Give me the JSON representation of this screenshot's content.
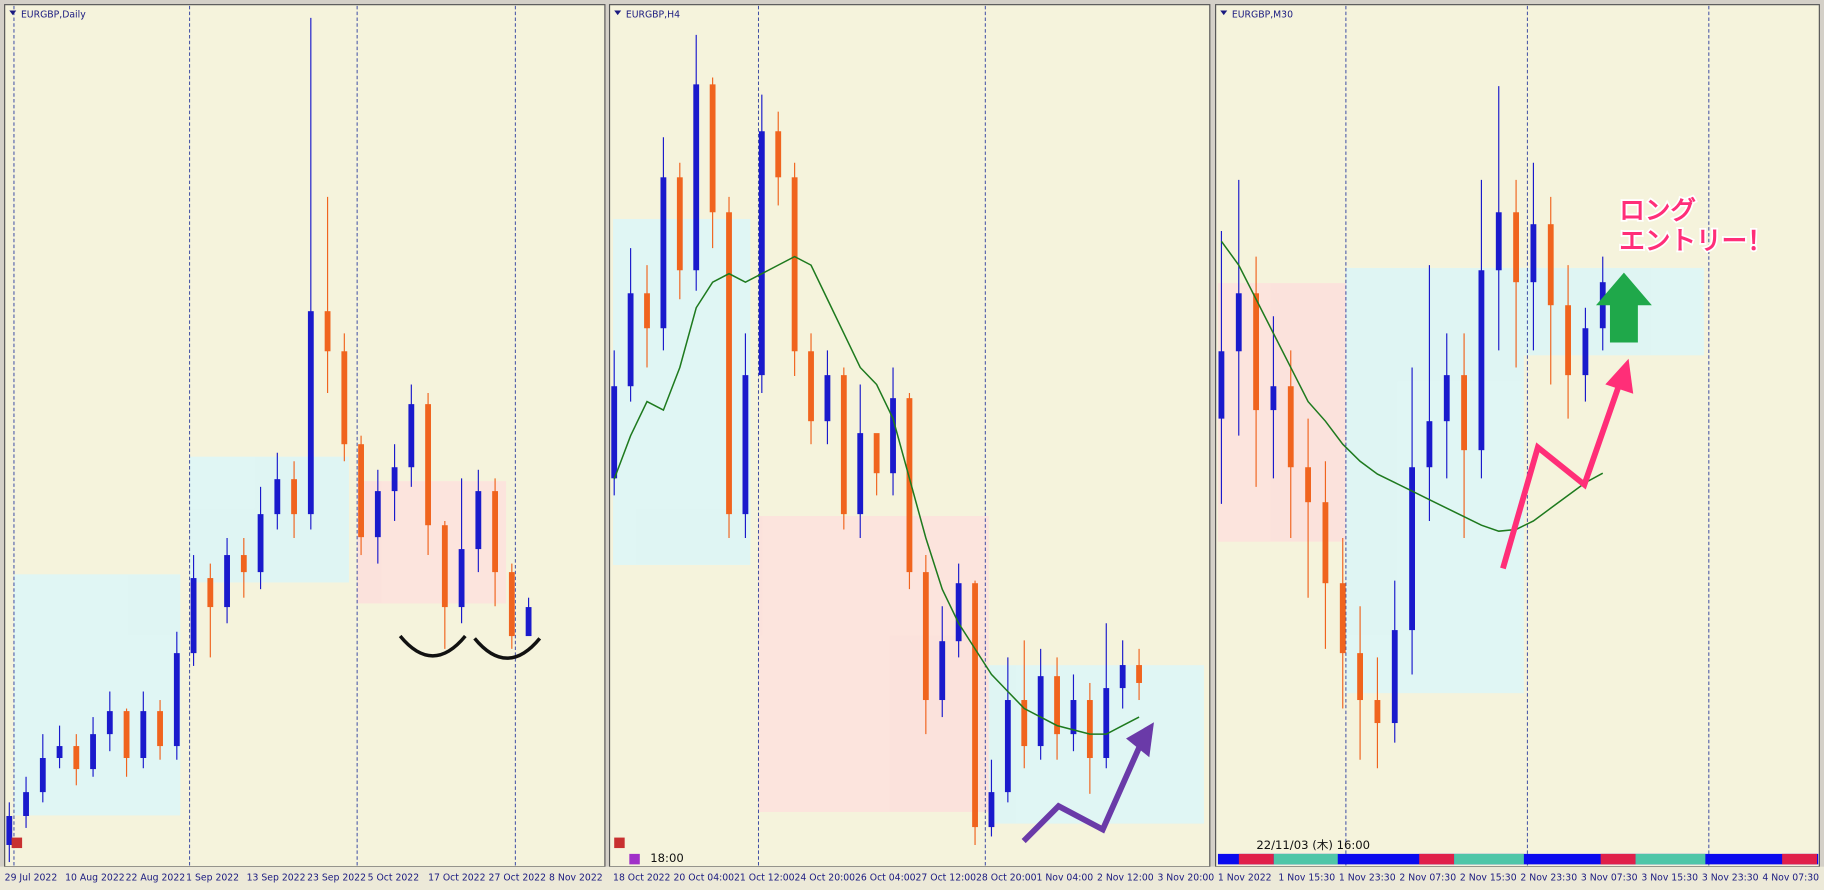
{
  "chart_data": [
    {
      "type": "candlestick",
      "title": "EURGBP,Daily",
      "categories": [
        "29 Jul 2022",
        "10 Aug 2022",
        "22 Aug 2022",
        "1 Sep 2022",
        "13 Sep 2022",
        "23 Sep 2022",
        "5 Oct 2022",
        "17 Oct 2022",
        "27 Oct 2022",
        "8 Nov 2022"
      ],
      "open": [
        2,
        5.4,
        8.2,
        12.2,
        13.6,
        10.9,
        15,
        17.7,
        12.2,
        17.7,
        13.6,
        24.5,
        33.3,
        29.9,
        36,
        34,
        40.8,
        44.9,
        40.8,
        64.6,
        59.9,
        49,
        38.1,
        43.5,
        46.3,
        53.7,
        39.5,
        29.9,
        36.7,
        43.5,
        34,
        26.5
      ],
      "high": [
        7,
        10,
        15,
        16,
        15,
        17,
        20,
        18,
        20,
        19,
        27,
        36,
        35,
        38,
        38,
        44,
        48,
        47,
        99,
        78,
        62,
        50,
        46,
        49,
        56,
        55,
        40,
        45,
        46,
        45,
        35,
        31
      ],
      "low": [
        0,
        4,
        7,
        11,
        9,
        10,
        13,
        10,
        11,
        12,
        12,
        23,
        24,
        28,
        31,
        32,
        39,
        38,
        39,
        55,
        47,
        36,
        35,
        40,
        44,
        36,
        25,
        28,
        34,
        30,
        25,
        27
      ],
      "close": [
        5.4,
        8.2,
        12.2,
        13.6,
        10.9,
        15,
        17.7,
        12.2,
        17.7,
        13.6,
        24.5,
        33.3,
        29.9,
        36,
        34,
        40.8,
        44.9,
        40.8,
        64.6,
        59.9,
        49,
        38.1,
        43.5,
        46.3,
        53.7,
        39.5,
        29.9,
        36.7,
        43.5,
        34,
        26.5,
        29.9
      ],
      "ylim": [
        0,
        100
      ],
      "up_color": "#1a1acc",
      "down_color": "#f0641e"
    },
    {
      "type": "candlestick",
      "title": "EURGBP,H4",
      "categories": [
        "18 Oct 2022",
        "20 Oct 04:00",
        "21 Oct 12:00",
        "24 Oct 20:00",
        "26 Oct 04:00",
        "27 Oct 12:00",
        "28 Oct 20:00",
        "1 Nov 04:00",
        "2 Nov 12:00",
        "3 Nov 20:00"
      ],
      "open": [
        45,
        55.8,
        66.7,
        62.6,
        80.3,
        69.4,
        91.2,
        76.2,
        40.8,
        57.1,
        85.7,
        80.3,
        59.9,
        51.7,
        57.1,
        40.8,
        50.3,
        45.6,
        54.4,
        34,
        19,
        25.9,
        32.7,
        4.1,
        8.2,
        19,
        13.6,
        21.8,
        15,
        19,
        12.2,
        20.4,
        23.1
      ],
      "high": [
        60,
        72,
        70,
        85,
        82,
        97,
        92,
        78,
        62,
        90,
        88,
        82,
        62,
        60,
        58,
        56,
        50,
        58,
        55,
        36,
        30,
        35,
        33,
        12,
        24,
        26,
        25,
        24,
        22,
        21,
        28,
        26,
        25
      ],
      "low": [
        43,
        54,
        58,
        60,
        66,
        67,
        72,
        38,
        38,
        55,
        77,
        57,
        49,
        49,
        39,
        38,
        43,
        43,
        32,
        15,
        17,
        24,
        2,
        3,
        7,
        11,
        12,
        12,
        13,
        8,
        11,
        18,
        19
      ],
      "close": [
        55.8,
        66.7,
        62.6,
        80.3,
        69.4,
        91.2,
        76.2,
        40.8,
        57.1,
        85.7,
        80.3,
        59.9,
        51.7,
        57.1,
        40.8,
        50.3,
        45.6,
        54.4,
        34,
        19,
        25.9,
        32.7,
        4.1,
        8.2,
        19,
        13.6,
        21.8,
        15,
        19,
        12.2,
        20.4,
        23.1,
        21
      ],
      "ma": [
        44.9,
        50,
        54,
        53,
        58,
        65,
        68,
        69,
        68,
        69,
        70,
        71,
        70,
        66,
        62,
        58,
        56,
        52,
        45,
        38,
        32,
        28,
        25,
        22,
        20,
        18,
        17,
        16,
        15.5,
        15,
        15,
        16,
        17
      ],
      "ylim": [
        0,
        100
      ],
      "up_color": "#1a1acc",
      "down_color": "#f0641e",
      "ma_color": "#1e7a1e"
    },
    {
      "type": "candlestick",
      "title": "EURGBP,M30",
      "categories": [
        "1 Nov 2022",
        "1 Nov 15:30",
        "1 Nov 23:30",
        "2 Nov 07:30",
        "2 Nov 15:30",
        "2 Nov 23:30",
        "3 Nov 07:30",
        "3 Nov 15:30",
        "3 Nov 23:30",
        "4 Nov 07:30"
      ],
      "open": [
        52,
        59.9,
        66.7,
        53,
        55.8,
        46.3,
        42.2,
        32.7,
        24.5,
        19,
        16.3,
        27.2,
        46.3,
        51.7,
        57.1,
        48.3,
        69.4,
        76.2,
        68,
        74.8,
        65.3,
        57.1,
        62.6
      ],
      "high": [
        74,
        80,
        71,
        64,
        60,
        52,
        47,
        38,
        30,
        24,
        33,
        58,
        70,
        62,
        62,
        80,
        91,
        80,
        82,
        78,
        70,
        65,
        71
      ],
      "low": [
        42,
        50,
        44,
        45,
        38,
        31,
        25,
        18,
        12,
        11,
        14,
        22,
        40,
        45,
        38,
        45,
        60,
        58,
        60,
        56,
        52,
        54,
        60
      ],
      "close": [
        59.9,
        66.7,
        53,
        55.8,
        46.3,
        42.2,
        32.7,
        24.5,
        19,
        16.3,
        27.2,
        46.3,
        51.7,
        57.1,
        48.3,
        69.4,
        76.2,
        68,
        74.8,
        65.3,
        57.1,
        62.6,
        68
      ],
      "ma": [
        72.8,
        70,
        66,
        62,
        58,
        54,
        51.7,
        49,
        47,
        45.5,
        44.5,
        43.5,
        42.5,
        41.5,
        40.5,
        39.5,
        38.8,
        39,
        40,
        41.5,
        43,
        44.5,
        45.6
      ],
      "ylim": [
        0,
        100
      ],
      "up_color": "#1a1acc",
      "down_color": "#f0641e",
      "ma_color": "#1e7a1e"
    }
  ],
  "annotations": {
    "time_label": "18:00",
    "crosshair_time": "22/11/03 (木) 16:00",
    "entry_text": [
      "ロング",
      "エントリー！"
    ]
  }
}
